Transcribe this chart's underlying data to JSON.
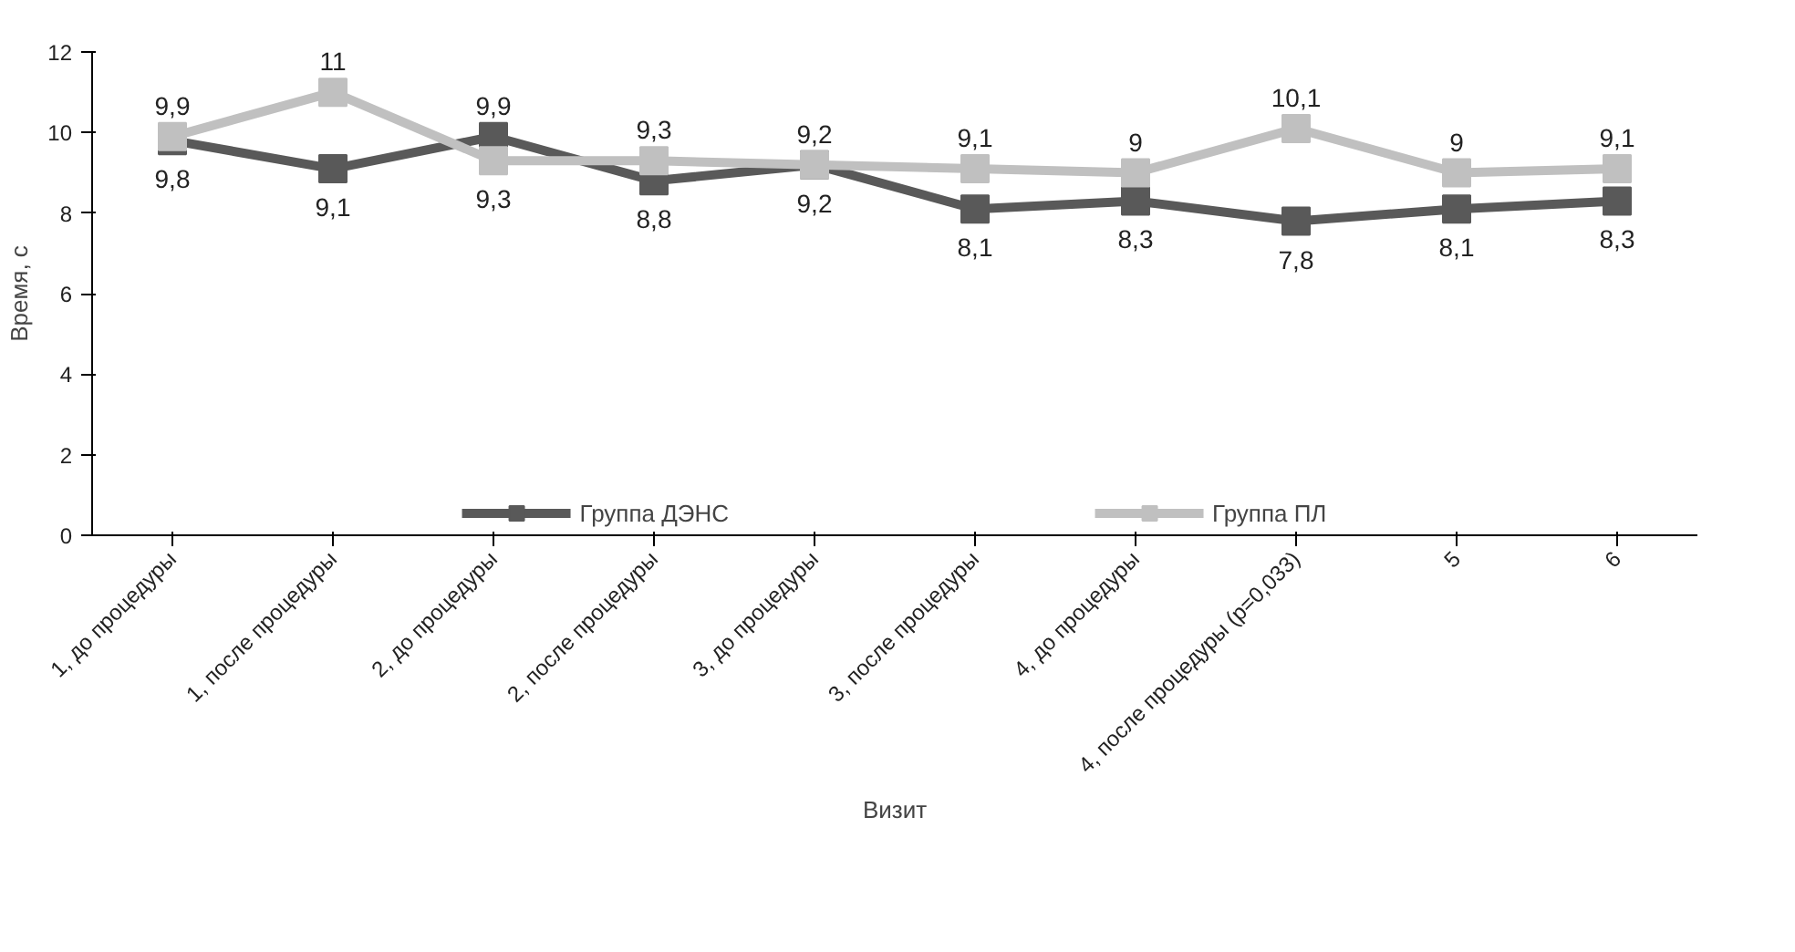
{
  "chart_data": {
    "type": "line",
    "xlabel": "Визит",
    "ylabel": "Время, с",
    "categories": [
      "1, до процедуры",
      "1, после процедуры",
      "2, до процедуры",
      "2, после процедуры",
      "3, до процедуры",
      "3, после процедуры",
      "4, до процедуры",
      "4, после процедуры (p=0,033)",
      "5",
      "6"
    ],
    "series": [
      {
        "name": "Группа ДЭНС",
        "color": "#595959",
        "values": [
          9.8,
          9.1,
          9.9,
          8.8,
          9.2,
          8.1,
          8.3,
          7.8,
          8.1,
          8.3
        ],
        "value_labels": [
          "9,8",
          "9,1",
          "9,9",
          "8,8",
          "9,2",
          "8,1",
          "8,3",
          "7,8",
          "8,1",
          "8,3"
        ]
      },
      {
        "name": "Группа ПЛ",
        "color": "#c0c0c0",
        "values": [
          9.9,
          11,
          9.3,
          9.3,
          9.2,
          9.1,
          9,
          10.1,
          9,
          9.1
        ],
        "value_labels": [
          "9,9",
          "11",
          "9,3",
          "9,3",
          "9,2",
          "9,1",
          "9",
          "10,1",
          "9",
          "9,1"
        ]
      }
    ],
    "ylim": [
      0,
      12
    ],
    "yticks": [
      0,
      2,
      4,
      6,
      8,
      10,
      12
    ],
    "grid": false,
    "legend": "bottom",
    "marker": "square",
    "line_style": "solid"
  }
}
